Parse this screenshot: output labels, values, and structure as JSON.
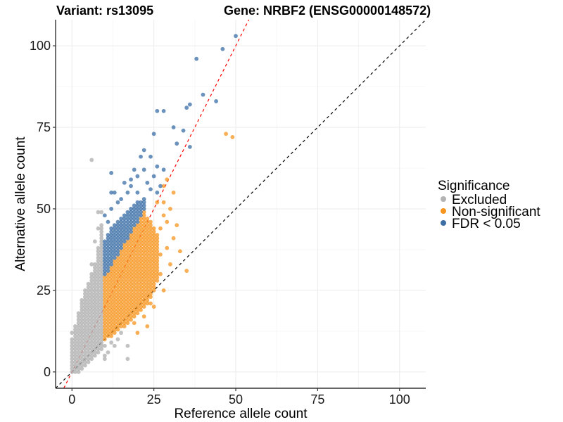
{
  "chart_data": {
    "type": "scatter",
    "title_left": "Variant: rs13095",
    "title_right": "Gene: NRBF2 (ENSG00000148572)",
    "xlabel": "Reference allele count",
    "ylabel": "Alternative allele count",
    "xlim": [
      -5,
      108
    ],
    "ylim": [
      -5,
      108
    ],
    "xticks": [
      0,
      25,
      50,
      75,
      100
    ],
    "yticks": [
      0,
      25,
      50,
      75,
      100
    ],
    "grid": true,
    "legend": {
      "title": "Significance",
      "position": "right",
      "entries": [
        {
          "label": "Excluded",
          "color": "#b3b3b3"
        },
        {
          "label": "Non-significant",
          "color": "#f7941d"
        },
        {
          "label": "FDR < 0.05",
          "color": "#3a6ea5"
        }
      ]
    },
    "reference_lines": [
      {
        "name": "y = x",
        "slope": 1,
        "intercept": 0,
        "color": "#000000",
        "style": "dashed"
      },
      {
        "name": "y = 2x",
        "slope": 2,
        "intercept": 0,
        "color": "#ff0000",
        "style": "dashed"
      }
    ],
    "series": [
      {
        "name": "Excluded",
        "color": "#b3b3b3",
        "columns": [
          [
            0,
            0,
            10
          ],
          [
            1,
            0,
            14
          ],
          [
            2,
            0,
            18
          ],
          [
            3,
            1,
            22
          ],
          [
            4,
            2,
            25
          ],
          [
            5,
            3,
            27
          ],
          [
            6,
            4,
            30
          ],
          [
            7,
            5,
            33
          ],
          [
            8,
            6,
            38
          ],
          [
            9,
            7,
            45
          ]
        ],
        "points": [
          [
            0,
            12
          ],
          [
            6,
            33
          ],
          [
            6,
            65
          ],
          [
            7,
            40
          ],
          [
            8,
            44
          ],
          [
            8,
            49
          ],
          [
            9,
            49
          ],
          [
            10,
            4
          ],
          [
            10,
            5
          ],
          [
            10,
            8
          ],
          [
            11,
            6
          ],
          [
            12,
            9
          ],
          [
            13,
            8
          ],
          [
            14,
            10
          ],
          [
            17,
            4
          ],
          [
            17,
            8
          ],
          [
            15,
            12
          ]
        ]
      },
      {
        "name": "Non-significant",
        "color": "#f7941d",
        "columns": [
          [
            10,
            10,
            29
          ],
          [
            11,
            11,
            30
          ],
          [
            12,
            11,
            32
          ],
          [
            13,
            12,
            34
          ],
          [
            14,
            13,
            35
          ],
          [
            15,
            14,
            37
          ],
          [
            16,
            14,
            39
          ],
          [
            17,
            15,
            40
          ],
          [
            18,
            16,
            42
          ],
          [
            19,
            17,
            44
          ],
          [
            20,
            18,
            45
          ],
          [
            21,
            19,
            47
          ],
          [
            22,
            20,
            49
          ],
          [
            23,
            21,
            47
          ],
          [
            24,
            23,
            46
          ],
          [
            25,
            25,
            44
          ],
          [
            26,
            28,
            42
          ]
        ],
        "points": [
          [
            27,
            44
          ],
          [
            28,
            48
          ],
          [
            28,
            57
          ],
          [
            29,
            59
          ],
          [
            31,
            55
          ],
          [
            27,
            36
          ],
          [
            29,
            38
          ],
          [
            30,
            33
          ],
          [
            33,
            37
          ],
          [
            35,
            31
          ],
          [
            28,
            25
          ],
          [
            22,
            17
          ],
          [
            24,
            21
          ],
          [
            20,
            12
          ],
          [
            19,
            15
          ],
          [
            47,
            73
          ],
          [
            49,
            72
          ],
          [
            30,
            50
          ],
          [
            32,
            45
          ],
          [
            26,
            52
          ],
          [
            28,
            52
          ],
          [
            27,
            30
          ],
          [
            31,
            41
          ],
          [
            25,
            20
          ],
          [
            23,
            14
          ],
          [
            29,
            46
          ]
        ]
      },
      {
        "name": "FDR < 0.05",
        "color": "#3a6ea5",
        "columns": [
          [
            10,
            30,
            40
          ],
          [
            11,
            31,
            42
          ],
          [
            12,
            33,
            44
          ],
          [
            13,
            35,
            45
          ],
          [
            14,
            36,
            46
          ],
          [
            15,
            38,
            47
          ],
          [
            16,
            40,
            48
          ],
          [
            17,
            41,
            49
          ],
          [
            18,
            43,
            50
          ],
          [
            19,
            45,
            51
          ],
          [
            20,
            46,
            52
          ],
          [
            21,
            48,
            52
          ],
          [
            22,
            50,
            53
          ]
        ],
        "points": [
          [
            10,
            48
          ],
          [
            11,
            46
          ],
          [
            12,
            55
          ],
          [
            13,
            55
          ],
          [
            15,
            53
          ],
          [
            12,
            50
          ],
          [
            14,
            52
          ],
          [
            16,
            58
          ],
          [
            17,
            55
          ],
          [
            19,
            62
          ],
          [
            20,
            60
          ],
          [
            18,
            57
          ],
          [
            21,
            66
          ],
          [
            22,
            68
          ],
          [
            24,
            66
          ],
          [
            23,
            58
          ],
          [
            25,
            73
          ],
          [
            26,
            80
          ],
          [
            28,
            80
          ],
          [
            31,
            75
          ],
          [
            34,
            74
          ],
          [
            32,
            70
          ],
          [
            36,
            69
          ],
          [
            35,
            81
          ],
          [
            36,
            82
          ],
          [
            38,
            96
          ],
          [
            40,
            85
          ],
          [
            44,
            83
          ],
          [
            46,
            99
          ],
          [
            50,
            103
          ],
          [
            12,
            61
          ],
          [
            26,
            63
          ],
          [
            27,
            57
          ],
          [
            25,
            60
          ],
          [
            28,
            62
          ],
          [
            24,
            56
          ],
          [
            26,
            55
          ],
          [
            22,
            62
          ],
          [
            20,
            55
          ],
          [
            18,
            59
          ]
        ]
      }
    ]
  }
}
